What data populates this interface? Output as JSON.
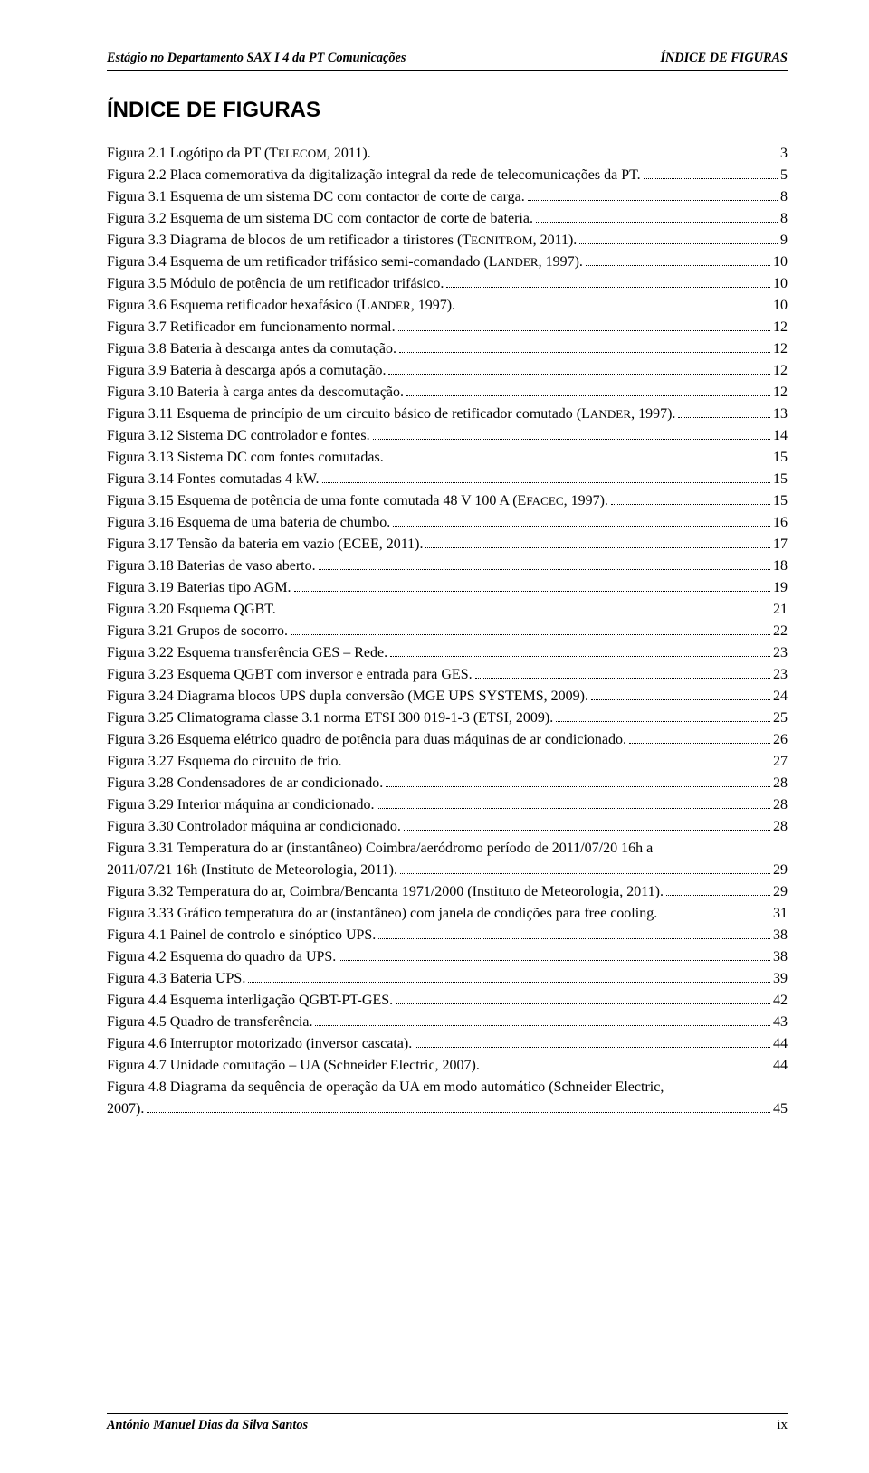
{
  "header": {
    "left": "Estágio no Departamento SAX I 4 da PT Comunicações",
    "right": "ÍNDICE DE FIGURAS"
  },
  "title": "ÍNDICE DE FIGURAS",
  "footer": {
    "left": "António Manuel Dias da Silva Santos",
    "right": "ix"
  },
  "entries": [
    {
      "label": "Figura 2.1 Logótipo da PT (TELECOM, 2011).",
      "page": "3",
      "smallcaps": [
        [
          "T",
          "ELECOM"
        ]
      ]
    },
    {
      "label": "Figura 2.2 Placa comemorativa da digitalização integral da rede de telecomunicações da PT.",
      "page": "5"
    },
    {
      "label": "Figura 3.1 Esquema de um sistema DC com contactor de corte de carga.",
      "page": "8"
    },
    {
      "label": "Figura 3.2 Esquema de um sistema DC com contactor de corte de bateria.",
      "page": "8"
    },
    {
      "label": "Figura 3.3 Diagrama de blocos de um retificador a tiristores (TECNITROM, 2011).",
      "page": "9",
      "smallcaps": [
        [
          "T",
          "ECNITROM"
        ]
      ]
    },
    {
      "label": "Figura 3.4 Esquema de um retificador trifásico semi-comandado (LANDER, 1997).",
      "page": "10",
      "smallcaps": [
        [
          "L",
          "ANDER"
        ]
      ]
    },
    {
      "label": "Figura 3.5 Módulo de potência de um retificador trifásico.",
      "page": "10"
    },
    {
      "label": "Figura 3.6 Esquema retificador hexafásico (LANDER, 1997).",
      "page": "10",
      "smallcaps": [
        [
          "L",
          "ANDER"
        ]
      ]
    },
    {
      "label": "Figura 3.7 Retificador em funcionamento normal.",
      "page": "12"
    },
    {
      "label": "Figura 3.8 Bateria à descarga antes da comutação.",
      "page": "12"
    },
    {
      "label": "Figura 3.9 Bateria à descarga após a comutação.",
      "page": "12"
    },
    {
      "label": "Figura 3.10 Bateria à carga antes da descomutação.",
      "page": "12"
    },
    {
      "label": "Figura 3.11 Esquema de princípio de um circuito básico de retificador comutado (LANDER, 1997).",
      "page": "13",
      "smallcaps": [
        [
          "L",
          "ANDER"
        ]
      ]
    },
    {
      "label": "Figura 3.12 Sistema DC controlador e fontes.",
      "page": "14"
    },
    {
      "label": "Figura 3.13 Sistema DC com fontes comutadas.",
      "page": "15"
    },
    {
      "label": "Figura 3.14 Fontes comutadas 4 kW.",
      "page": "15"
    },
    {
      "label": "Figura 3.15 Esquema de potência de uma fonte comutada 48 V 100 A (EFACEC, 1997).",
      "page": "15",
      "smallcaps": [
        [
          "E",
          "FACEC"
        ]
      ]
    },
    {
      "label": "Figura 3.16 Esquema de uma bateria de chumbo.",
      "page": "16"
    },
    {
      "label": "Figura 3.17 Tensão da bateria em vazio (ECEE, 2011).",
      "page": "17"
    },
    {
      "label": "Figura 3.18 Baterias de vaso aberto.",
      "page": "18"
    },
    {
      "label": "Figura 3.19 Baterias tipo AGM.",
      "page": "19"
    },
    {
      "label": "Figura 3.20 Esquema QGBT.",
      "page": "21"
    },
    {
      "label": "Figura 3.21 Grupos de socorro.",
      "page": "22"
    },
    {
      "label": "Figura 3.22 Esquema transferência GES – Rede.",
      "page": "23"
    },
    {
      "label": "Figura 3.23 Esquema QGBT com inversor e entrada para GES.",
      "page": "23"
    },
    {
      "label": "Figura 3.24 Diagrama blocos UPS dupla conversão (MGE UPS SYSTEMS, 2009).",
      "page": "24"
    },
    {
      "label": "Figura 3.25 Climatograma classe 3.1 norma ETSI 300 019-1-3 (ETSI, 2009).",
      "page": "25"
    },
    {
      "label": "Figura 3.26 Esquema elétrico quadro de potência para duas máquinas de ar condicionado.",
      "page": "26"
    },
    {
      "label": "Figura 3.27 Esquema do circuito de frio.",
      "page": "27"
    },
    {
      "label": "Figura 3.28 Condensadores de ar condicionado.",
      "page": "28"
    },
    {
      "label": "Figura 3.29 Interior máquina ar condicionado.",
      "page": "28"
    },
    {
      "label": "Figura 3.30 Controlador máquina ar condicionado.",
      "page": "28"
    },
    {
      "label_line1": "Figura 3.31 Temperatura do ar (instantâneo) Coimbra/aeródromo período de 2011/07/20 16h a",
      "label": "2011/07/21 16h (Instituto de Meteorologia, 2011).",
      "page": "29"
    },
    {
      "label": "Figura 3.32 Temperatura do ar, Coimbra/Bencanta 1971/2000 (Instituto de Meteorologia, 2011).",
      "page": "29"
    },
    {
      "label": "Figura 3.33 Gráfico temperatura do ar (instantâneo) com janela de condições para free cooling.",
      "page": "31"
    },
    {
      "label": "Figura 4.1 Painel de controlo e sinóptico UPS.",
      "page": "38"
    },
    {
      "label": "Figura 4.2 Esquema do quadro da UPS.",
      "page": "38"
    },
    {
      "label": "Figura 4.3 Bateria UPS.",
      "page": "39"
    },
    {
      "label": "Figura 4.4 Esquema interligação QGBT-PT-GES.",
      "page": "42"
    },
    {
      "label": "Figura 4.5 Quadro de transferência.",
      "page": "43"
    },
    {
      "label": "Figura 4.6 Interruptor motorizado (inversor cascata).",
      "page": "44"
    },
    {
      "label": "Figura 4.7 Unidade comutação – UA (Schneider Electric, 2007).",
      "page": "44"
    },
    {
      "label_line1": "Figura 4.8 Diagrama da sequência de operação da UA em modo automático (Schneider Electric,",
      "label": "2007).",
      "page": "45"
    }
  ]
}
